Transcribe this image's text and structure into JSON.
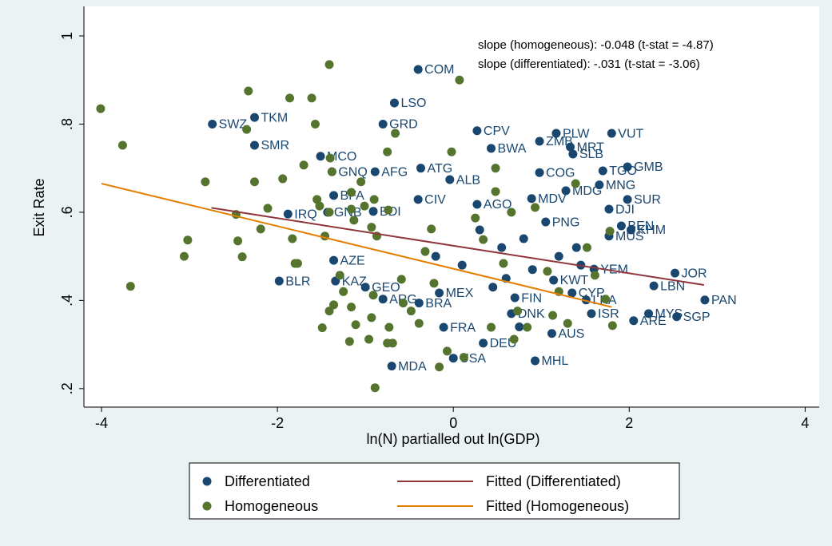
{
  "chart_data": {
    "type": "scatter",
    "x_label": "ln(N) partialled out ln(GDP)",
    "y_label": "Exit Rate",
    "xlim": [
      -4.2,
      4.16
    ],
    "ylim": [
      0.158,
      1.067
    ],
    "xticks": [
      -4,
      -2,
      0,
      2,
      4
    ],
    "yticks": [
      {
        "value": 0.2,
        "label": ".2"
      },
      {
        "value": 0.4,
        "label": ".4"
      },
      {
        "value": 0.6,
        "label": ".6"
      },
      {
        "value": 0.8,
        "label": ".8"
      },
      1
    ],
    "grid": false,
    "annotations": [
      "slope (homogeneous): -0.048 (t-stat = -4.87)",
      "slope (differentiated): -.031 (t-stat = -3.06)"
    ],
    "series": [
      {
        "name": "Differentiated",
        "color": "#1a476f",
        "x": [
          -0.4,
          -0.67,
          -0.8,
          -2.74,
          -2.26,
          -2.26,
          -1.51,
          0.27,
          1.17,
          1.8,
          0.98,
          0.43,
          1.33,
          1.36,
          1.98,
          1.7,
          1.66,
          -1.38,
          -0.89,
          -0.37,
          -0.04,
          0.98,
          1.28,
          -1.36,
          1.77,
          1.98,
          -0.91,
          -1.88,
          -1.43,
          -0.4,
          0.27,
          0.89,
          1.05,
          1.91,
          2.02,
          1.77,
          -1.36,
          -1.34,
          -1.98,
          -1.0,
          -0.8,
          -0.39,
          -0.16,
          1.6,
          2.28,
          2.52,
          2.86,
          2.54,
          2.22,
          2.05,
          1.51,
          1.57,
          1.14,
          1.35,
          1.12,
          0.34,
          -0.11,
          0.0,
          -0.7,
          0.93,
          0.66,
          0.7,
          0.3,
          0.55,
          0.8,
          1.2,
          1.45,
          0.1,
          -0.2,
          0.6,
          0.9,
          1.4,
          0.45,
          0.75
        ],
        "values": [
          0.924,
          0.848,
          0.8,
          0.8,
          0.815,
          0.752,
          0.727,
          0.785,
          0.779,
          0.779,
          0.761,
          0.745,
          0.748,
          0.732,
          0.703,
          0.694,
          0.662,
          0.692,
          0.692,
          0.7,
          0.674,
          0.69,
          0.649,
          0.638,
          0.607,
          0.629,
          0.602,
          0.596,
          0.6,
          0.629,
          0.618,
          0.631,
          0.578,
          0.569,
          0.56,
          0.546,
          0.491,
          0.444,
          0.444,
          0.43,
          0.403,
          0.394,
          0.417,
          0.471,
          0.433,
          0.462,
          0.401,
          0.363,
          0.37,
          0.354,
          0.401,
          0.37,
          0.446,
          0.417,
          0.325,
          0.303,
          0.339,
          0.269,
          0.251,
          0.263,
          0.37,
          0.406,
          0.56,
          0.52,
          0.54,
          0.5,
          0.48,
          0.48,
          0.5,
          0.45,
          0.47,
          0.52,
          0.43,
          0.34
        ],
        "labels": [
          "COM",
          "LSO",
          "GRD",
          "SWZ",
          "TKM",
          "SMR",
          "MCO",
          "CPV",
          "PLW",
          "VUT",
          "ZMB",
          "BWA",
          "MRT",
          "SLB",
          "GMB",
          "TGO",
          "MNG",
          "GNQ",
          "AFG",
          "ATG",
          "ALB",
          "COG",
          "MDG",
          "BFA",
          "DJI",
          "SUR",
          "BDI",
          "IRQ",
          "GNB",
          "CIV",
          "AGO",
          "MDV",
          "PNG",
          "BEN",
          "KHM",
          "MUS",
          "AZE",
          "KAZ",
          "BLR",
          "GEO",
          "ARG",
          "BRA",
          "MEX",
          "YEM",
          "LBN",
          "JOR",
          "PAN",
          "SGP",
          "MYS",
          "ARE",
          "LKA",
          "ISR",
          "KWT",
          "CYP",
          "AUS",
          "DEU",
          "FRA",
          "USA",
          "MDA",
          "MHL",
          "DNK",
          "FIN",
          null,
          null,
          null,
          null,
          null,
          null,
          null,
          null,
          null,
          null,
          null,
          null
        ]
      },
      {
        "name": "Homogeneous",
        "color": "#55752f",
        "x": [
          -4.01,
          -3.76,
          -3.67,
          -3.02,
          -3.06,
          -2.82,
          -2.47,
          -2.45,
          -2.4,
          -2.33,
          -2.35,
          -2.26,
          -2.19,
          -2.11,
          -1.94,
          -1.86,
          -1.7,
          -1.83,
          -1.8,
          -1.77,
          -1.61,
          -1.57,
          -1.55,
          -1.52,
          -1.46,
          -1.41,
          -1.4,
          -1.38,
          -1.41,
          -1.29,
          -1.16,
          -1.16,
          -1.13,
          -1.05,
          -1.01,
          -0.9,
          -0.93,
          -0.75,
          -0.66,
          -0.74,
          -0.87,
          -1.25,
          -1.36,
          -1.41,
          -1.49,
          -1.16,
          -1.11,
          -1.18,
          -0.96,
          -0.93,
          -0.91,
          -0.89,
          -0.73,
          -0.75,
          -0.69,
          -0.59,
          -0.57,
          -0.48,
          -0.39,
          -0.32,
          -0.25,
          -0.22,
          -0.16,
          -0.07,
          -0.02,
          0.07,
          0.12,
          0.25,
          0.34,
          0.48,
          0.48,
          0.57,
          0.66,
          0.73,
          0.84,
          0.93,
          1.07,
          1.13,
          1.2,
          1.3,
          1.39,
          1.52,
          1.61,
          1.73,
          1.78,
          1.81,
          0.69,
          0.43
        ],
        "values": [
          0.835,
          0.752,
          0.432,
          0.537,
          0.5,
          0.669,
          0.595,
          0.535,
          0.499,
          0.875,
          0.788,
          0.669,
          0.562,
          0.609,
          0.676,
          0.859,
          0.707,
          0.54,
          0.484,
          0.484,
          0.859,
          0.8,
          0.629,
          0.614,
          0.546,
          0.935,
          0.723,
          0.692,
          0.6,
          0.457,
          0.607,
          0.645,
          0.582,
          0.669,
          0.614,
          0.629,
          0.566,
          0.737,
          0.779,
          0.605,
          0.546,
          0.42,
          0.39,
          0.376,
          0.338,
          0.385,
          0.345,
          0.307,
          0.312,
          0.361,
          0.412,
          0.202,
          0.339,
          0.303,
          0.303,
          0.448,
          0.394,
          0.376,
          0.348,
          0.511,
          0.562,
          0.439,
          0.249,
          0.285,
          0.737,
          0.9,
          0.271,
          0.587,
          0.538,
          0.647,
          0.7,
          0.484,
          0.6,
          0.376,
          0.339,
          0.611,
          0.466,
          0.366,
          0.42,
          0.348,
          0.665,
          0.52,
          0.457,
          0.403,
          0.557,
          0.343,
          0.312,
          0.339
        ]
      },
      {
        "name": "Fitted (Differentiated)",
        "type": "line",
        "color": "#90353b",
        "x": [
          -2.75,
          2.85
        ],
        "values": [
          0.61,
          0.435
        ]
      },
      {
        "name": "Fitted (Homogeneous)",
        "type": "line",
        "color": "#e37e00",
        "x": [
          -4.0,
          1.8
        ],
        "values": [
          0.665,
          0.385
        ]
      }
    ]
  }
}
